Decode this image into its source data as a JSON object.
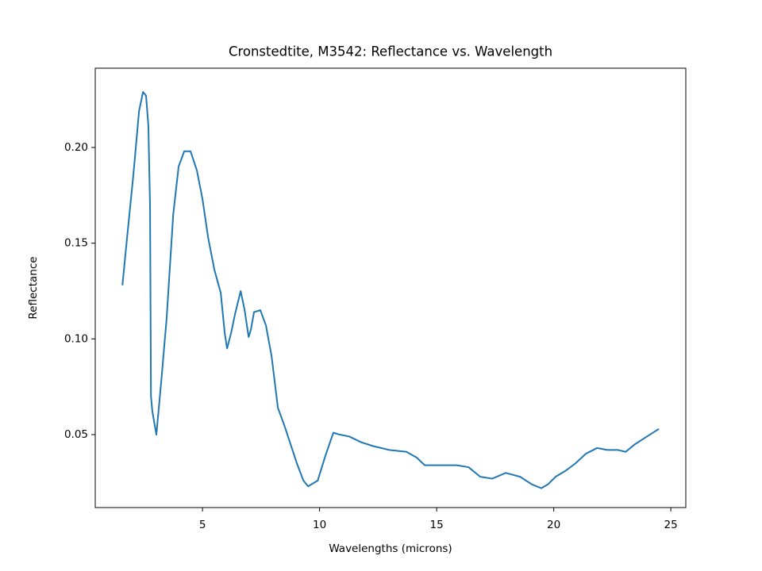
{
  "chart_data": {
    "type": "line",
    "title": "Cronstedtite, M3542: Reflectance vs. Wavelength",
    "x_label": "Wavelengths (microns)",
    "y_label": "Reflectance",
    "x": [
      1.58,
      1.78,
      2.05,
      2.29,
      2.46,
      2.59,
      2.69,
      2.76,
      2.8,
      2.86,
      3.03,
      3.24,
      3.47,
      3.75,
      3.98,
      4.22,
      4.49,
      4.76,
      5.0,
      5.24,
      5.51,
      5.78,
      5.95,
      6.05,
      6.22,
      6.39,
      6.63,
      6.8,
      6.97,
      7.07,
      7.2,
      7.47,
      7.71,
      7.95,
      8.22,
      8.49,
      8.76,
      9.03,
      9.31,
      9.51,
      9.92,
      10.25,
      10.59,
      10.86,
      11.27,
      11.78,
      12.29,
      12.97,
      13.71,
      14.15,
      14.49,
      15.0,
      15.85,
      16.36,
      16.86,
      17.37,
      17.95,
      18.56,
      19.07,
      19.47,
      19.75,
      20.08,
      20.49,
      20.93,
      21.37,
      21.85,
      22.29,
      22.73,
      23.07,
      23.47,
      23.98,
      24.49
    ],
    "series": [
      {
        "name": "Reflectance",
        "color": "#1f77b4",
        "values": [
          0.128,
          0.153,
          0.186,
          0.219,
          0.229,
          0.227,
          0.211,
          0.169,
          0.07,
          0.062,
          0.05,
          0.078,
          0.111,
          0.165,
          0.19,
          0.198,
          0.198,
          0.188,
          0.173,
          0.153,
          0.136,
          0.124,
          0.103,
          0.095,
          0.103,
          0.113,
          0.125,
          0.115,
          0.101,
          0.105,
          0.114,
          0.115,
          0.107,
          0.091,
          0.064,
          0.055,
          0.045,
          0.035,
          0.026,
          0.023,
          0.026,
          0.039,
          0.051,
          0.05,
          0.049,
          0.046,
          0.044,
          0.042,
          0.041,
          0.038,
          0.034,
          0.034,
          0.034,
          0.033,
          0.028,
          0.027,
          0.03,
          0.028,
          0.024,
          0.022,
          0.024,
          0.028,
          0.031,
          0.035,
          0.04,
          0.043,
          0.042,
          0.042,
          0.041,
          0.045,
          0.049,
          0.053
        ]
      }
    ],
    "xlim": [
      0.42,
      25.64
    ],
    "ylim": [
      0.0119,
      0.2414
    ],
    "xticks": [
      5,
      10,
      15,
      20,
      25
    ],
    "yticks": [
      {
        "value": 0.05,
        "label": "0.05"
      },
      {
        "value": 0.1,
        "label": "0.10"
      },
      {
        "value": 0.15,
        "label": "0.15"
      },
      {
        "value": 0.2,
        "label": "0.20"
      }
    ]
  }
}
